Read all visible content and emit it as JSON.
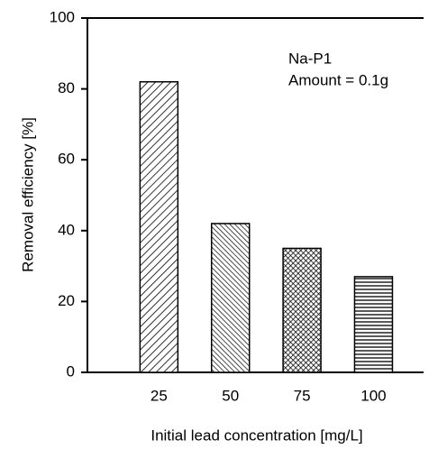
{
  "chart_data": {
    "type": "bar",
    "x_label": "Initial lead concentration [mg/L]",
    "y_label": "Removal efficiency [%]",
    "annotations": [
      "Na-P1",
      "Amount = 0.1g"
    ],
    "categories": [
      "25",
      "50",
      "75",
      "100"
    ],
    "values": [
      82,
      42,
      35,
      27
    ],
    "ylim": [
      0,
      100
    ],
    "yticks": [
      0,
      20,
      40,
      60,
      80,
      100
    ]
  }
}
